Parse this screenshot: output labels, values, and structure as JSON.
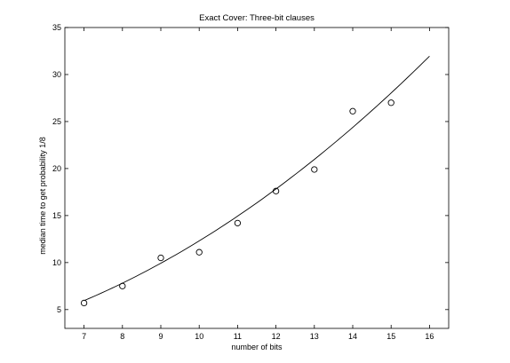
{
  "chart_data": {
    "type": "scatter",
    "title": "Exact Cover: Three-bit clauses",
    "xlabel": "number of bits",
    "ylabel": "median time to get probability 1/8",
    "xlim": [
      6.5,
      16.5
    ],
    "ylim": [
      3,
      35
    ],
    "xticks": [
      7,
      8,
      9,
      10,
      11,
      12,
      13,
      14,
      15,
      16
    ],
    "yticks": [
      5,
      10,
      15,
      20,
      25,
      30,
      35
    ],
    "grid": false,
    "legend": "none",
    "series": [
      {
        "kind": "points",
        "marker": "open-circle",
        "x": [
          7,
          8,
          9,
          10,
          11,
          12,
          13,
          14,
          15
        ],
        "y": [
          5.7,
          7.5,
          10.5,
          11.1,
          14.2,
          17.6,
          19.9,
          26.1,
          27.0
        ]
      },
      {
        "kind": "fit-curve",
        "x": [
          7,
          8,
          9,
          10,
          11,
          12,
          13,
          14,
          15,
          16
        ],
        "y": [
          5.9,
          7.8,
          10.0,
          12.4,
          14.9,
          17.8,
          20.9,
          24.4,
          28.0,
          32.0
        ]
      }
    ]
  }
}
